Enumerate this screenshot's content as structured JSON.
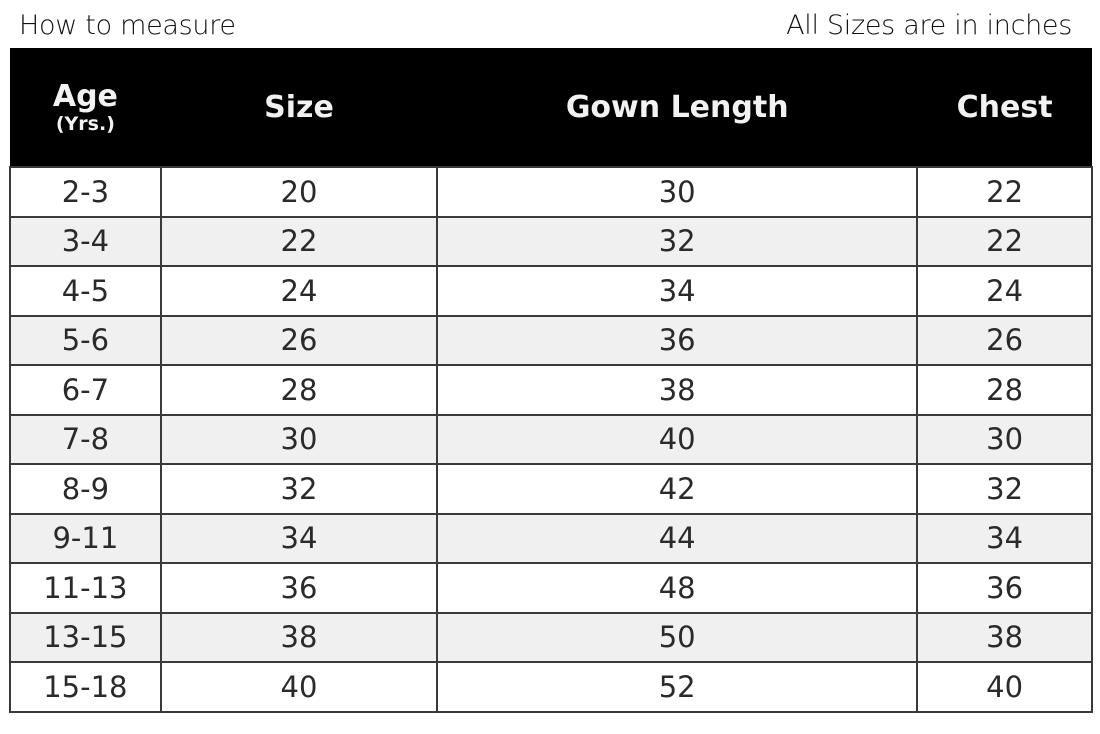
{
  "header": {
    "left": "How to measure",
    "right": "All Sizes are in inches"
  },
  "table": {
    "columns": [
      {
        "label": "Age",
        "sub": "(Yrs.)"
      },
      {
        "label": "Size"
      },
      {
        "label": "Gown Length"
      },
      {
        "label": "Chest"
      }
    ],
    "rows": [
      [
        "2-3",
        "20",
        "30",
        "22"
      ],
      [
        "3-4",
        "22",
        "32",
        "22"
      ],
      [
        "4-5",
        "24",
        "34",
        "24"
      ],
      [
        "5-6",
        "26",
        "36",
        "26"
      ],
      [
        "6-7",
        "28",
        "38",
        "28"
      ],
      [
        "7-8",
        "30",
        "40",
        "30"
      ],
      [
        "8-9",
        "32",
        "42",
        "32"
      ],
      [
        "9-11",
        "34",
        "44",
        "34"
      ],
      [
        "11-13",
        "36",
        "48",
        "36"
      ],
      [
        "13-15",
        "38",
        "50",
        "38"
      ],
      [
        "15-18",
        "40",
        "52",
        "40"
      ]
    ]
  },
  "colors": {
    "header_bg": "#000000",
    "alt_row_bg": "#f0f0f0"
  }
}
